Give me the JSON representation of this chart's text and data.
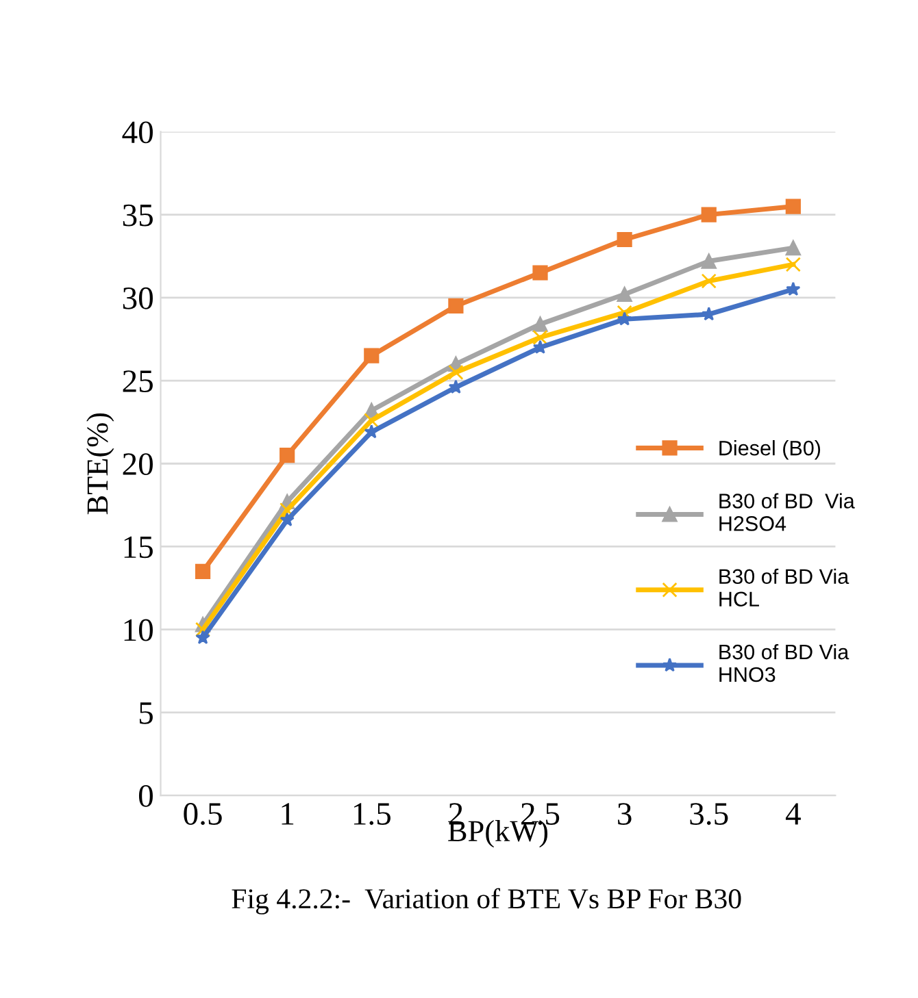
{
  "chart_data": {
    "type": "line",
    "title": "Fig 4.2.2:-  Variation of BTE Vs BP For B30",
    "xlabel": "BP(kW)",
    "ylabel": "BTE(%)",
    "categories": [
      "0.5",
      "1",
      "1.5",
      "2",
      "2.5",
      "3",
      "3.5",
      "4"
    ],
    "series": [
      {
        "name": "Diesel (B0)",
        "color": "#ed7d31",
        "marker": "square",
        "values": [
          13.5,
          20.5,
          26.5,
          29.5,
          31.5,
          33.5,
          35,
          35.5
        ]
      },
      {
        "name": "B30 of BD  Via\nH2SO4",
        "color": "#a5a5a5",
        "marker": "triangle",
        "values": [
          10.3,
          17.7,
          23.2,
          26,
          28.4,
          30.2,
          32.2,
          33
        ]
      },
      {
        "name": "B30 of BD Via\nHCL",
        "color": "#ffc000",
        "marker": "cross",
        "values": [
          10,
          17.2,
          22.6,
          25.5,
          27.6,
          29.1,
          31,
          32
        ]
      },
      {
        "name": "B30 of BD Via\nHNO3",
        "color": "#4472c4",
        "marker": "star",
        "values": [
          9.5,
          16.6,
          21.9,
          24.6,
          27,
          28.7,
          29,
          30.5
        ]
      }
    ],
    "ylim": [
      0,
      40
    ],
    "yticks": [
      0,
      5,
      10,
      15,
      20,
      25,
      30,
      35,
      40
    ],
    "grid": "y",
    "legend": "right",
    "line_style": "solid"
  }
}
